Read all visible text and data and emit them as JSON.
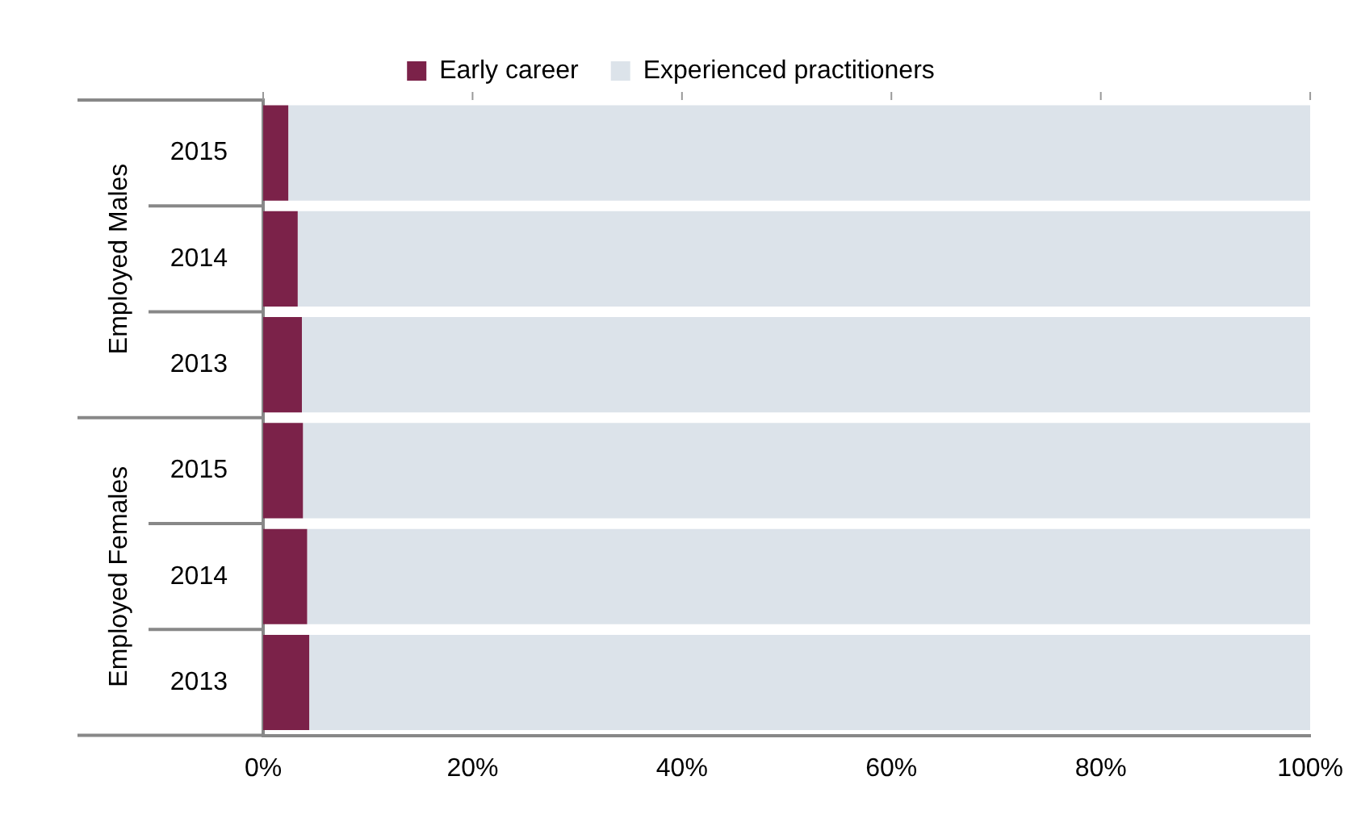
{
  "chart_data": {
    "type": "bar",
    "orientation": "horizontal",
    "stacked": true,
    "categories": [
      "2015",
      "2014",
      "2013",
      "2015",
      "2014",
      "2013"
    ],
    "series": [
      {
        "name": "Early career",
        "color": "#7b2249",
        "values": [
          2.4,
          3.3,
          3.7,
          3.8,
          4.2,
          4.4
        ]
      },
      {
        "name": "Experienced practitioners",
        "color": "#dce3ea",
        "values": [
          97.6,
          96.7,
          96.3,
          96.2,
          95.8,
          95.6
        ]
      }
    ],
    "xlim": [
      0,
      100
    ],
    "xticks": [
      {
        "value": 0,
        "label": "0%"
      },
      {
        "value": 20,
        "label": "20%"
      },
      {
        "value": 40,
        "label": "40%"
      },
      {
        "value": 60,
        "label": "60%"
      },
      {
        "value": 80,
        "label": "80%"
      },
      {
        "value": 100,
        "label": "100%"
      }
    ],
    "annotations": [
      "Employed Males",
      "Employed Females"
    ],
    "legend": "top",
    "grid": false
  }
}
